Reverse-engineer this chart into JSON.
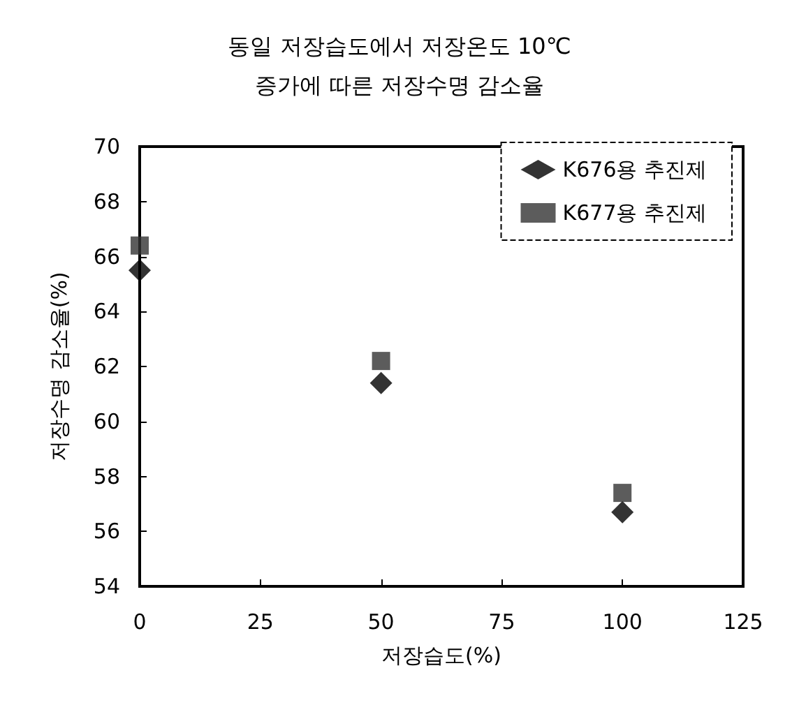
{
  "chart_data": {
    "type": "scatter",
    "title": "동일 저장습도에서 저장온도 10℃\n증가에 따른 저장수명 감소율",
    "xlabel": "저장습도(%)",
    "ylabel": "저장수명 감소율(%)",
    "x": [
      0,
      50,
      100
    ],
    "series": [
      {
        "name": "K676용 추진제",
        "color": "#000000",
        "marker": "diamond",
        "values": [
          65.5,
          61.4,
          56.7
        ]
      },
      {
        "name": "K677용 추진제",
        "color": "#333333",
        "marker": "square",
        "values": [
          66.4,
          62.2,
          57.4
        ]
      }
    ],
    "xlim": [
      0,
      125
    ],
    "xticks": [
      0,
      25,
      50,
      75,
      100,
      125
    ],
    "ylim": [
      54,
      70
    ],
    "yticks": [
      54,
      56,
      58,
      60,
      62,
      64,
      66,
      68,
      70
    ],
    "grid": false,
    "legend": "top right"
  }
}
